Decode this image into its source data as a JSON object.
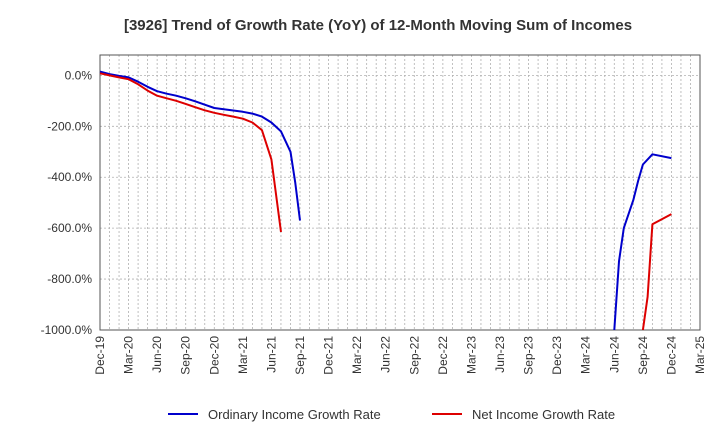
{
  "chart_data": {
    "type": "line",
    "title": "[3926]  Trend of Growth Rate (YoY) of 12-Month Moving Sum of Incomes",
    "xlabel": "",
    "ylabel": "",
    "ylim": [
      -1000,
      80
    ],
    "y_ticks": [
      0,
      -200,
      -400,
      -600,
      -800,
      -1000
    ],
    "y_tick_labels": [
      "0.0%",
      "-200.0%",
      "-400.0%",
      "-600.0%",
      "-800.0%",
      "-1000.0%"
    ],
    "x_tick_labels": [
      "Dec-19",
      "Mar-20",
      "Jun-20",
      "Sep-20",
      "Dec-20",
      "Mar-21",
      "Jun-21",
      "Sep-21",
      "Dec-21",
      "Mar-22",
      "Jun-22",
      "Sep-22",
      "Dec-22",
      "Mar-23",
      "Jun-23",
      "Sep-23",
      "Dec-23",
      "Mar-24",
      "Jun-24",
      "Sep-24",
      "Dec-24",
      "Mar-25"
    ],
    "x_range_months": [
      "Dec-19",
      "Mar-25"
    ],
    "grid": true,
    "legend_position": "bottom",
    "series": [
      {
        "name": "Ordinary Income Growth Rate",
        "color": "#0000cc",
        "points": [
          [
            "Dec-19",
            15
          ],
          [
            "Jan-20",
            5
          ],
          [
            "Feb-20",
            -2
          ],
          [
            "Mar-20",
            -8
          ],
          [
            "Apr-20",
            -25
          ],
          [
            "May-20",
            -45
          ],
          [
            "Jun-20",
            -62
          ],
          [
            "Jul-20",
            -72
          ],
          [
            "Aug-20",
            -80
          ],
          [
            "Sep-20",
            -90
          ],
          [
            "Oct-20",
            -102
          ],
          [
            "Nov-20",
            -115
          ],
          [
            "Dec-20",
            -128
          ],
          [
            "Jan-21",
            -133
          ],
          [
            "Feb-21",
            -138
          ],
          [
            "Mar-21",
            -143
          ],
          [
            "Apr-21",
            -150
          ],
          [
            "May-21",
            -162
          ],
          [
            "Jun-21",
            -185
          ],
          [
            "Jul-21",
            -220
          ],
          [
            "Aug-21",
            -300
          ],
          [
            "Aug-21b",
            -420
          ],
          [
            "Sep-21",
            -570
          ]
        ],
        "segment2": [
          [
            "Jun-24",
            -1000
          ],
          [
            "Jun-24b",
            -730
          ],
          [
            "Jul-24",
            -600
          ],
          [
            "Aug-24",
            -490
          ],
          [
            "Aug-24b",
            -415
          ],
          [
            "Sep-24",
            -350
          ],
          [
            "Oct-24",
            -310
          ],
          [
            "Dec-24",
            -325
          ]
        ]
      },
      {
        "name": "Net Income Growth Rate",
        "color": "#dd0000",
        "points": [
          [
            "Dec-19",
            8
          ],
          [
            "Jan-20",
            0
          ],
          [
            "Feb-20",
            -8
          ],
          [
            "Mar-20",
            -15
          ],
          [
            "Apr-20",
            -35
          ],
          [
            "May-20",
            -60
          ],
          [
            "Jun-20",
            -80
          ],
          [
            "Jul-20",
            -90
          ],
          [
            "Aug-20",
            -100
          ],
          [
            "Sep-20",
            -112
          ],
          [
            "Oct-20",
            -125
          ],
          [
            "Nov-20",
            -137
          ],
          [
            "Dec-20",
            -147
          ],
          [
            "Jan-21",
            -155
          ],
          [
            "Feb-21",
            -162
          ],
          [
            "Mar-21",
            -170
          ],
          [
            "Apr-21",
            -185
          ],
          [
            "May-21",
            -215
          ],
          [
            "Jun-21",
            -330
          ],
          [
            "Jul-21",
            -615
          ]
        ],
        "segment2": [
          [
            "Sep-24",
            -1000
          ],
          [
            "Sep-24b",
            -870
          ],
          [
            "Oct-24",
            -585
          ],
          [
            "Dec-24",
            -545
          ]
        ]
      }
    ]
  }
}
